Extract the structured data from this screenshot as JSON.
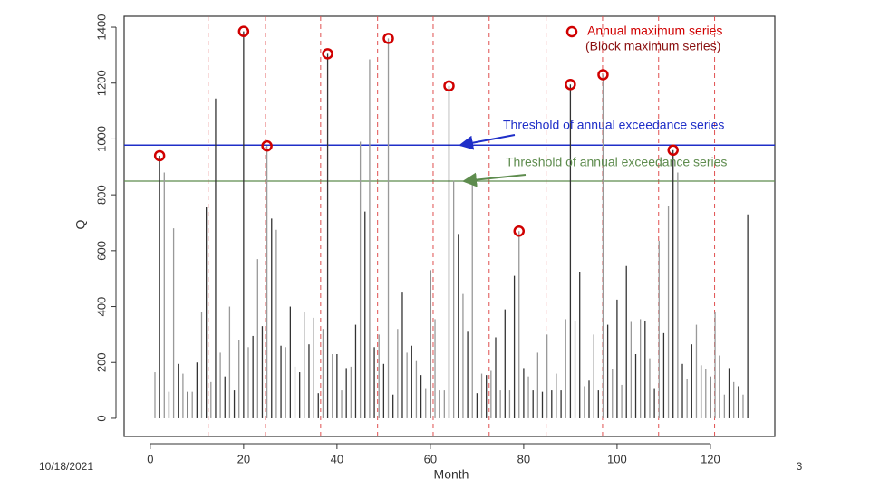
{
  "chart_data": {
    "type": "stem",
    "xlabel": "Month",
    "ylabel": "Q",
    "xlim": [
      -5.6,
      133.8
    ],
    "ylim": [
      -65,
      1439
    ],
    "xticks": [
      0,
      20,
      40,
      60,
      80,
      100,
      120
    ],
    "yticks": [
      0,
      200,
      400,
      600,
      800,
      1000,
      1200,
      1400
    ],
    "color": "#333333",
    "x": [
      1,
      2,
      3,
      4,
      5,
      6,
      7,
      8,
      9,
      10,
      11,
      12,
      13,
      14,
      15,
      16,
      17,
      18,
      19,
      20,
      21,
      22,
      23,
      24,
      25,
      26,
      27,
      28,
      29,
      30,
      31,
      32,
      33,
      34,
      35,
      36,
      37,
      38,
      39,
      40,
      41,
      42,
      43,
      44,
      45,
      46,
      47,
      48,
      49,
      50,
      51,
      52,
      53,
      54,
      55,
      56,
      57,
      58,
      59,
      60,
      61,
      62,
      63,
      64,
      65,
      66,
      67,
      68,
      69,
      70,
      71,
      72,
      73,
      74,
      75,
      76,
      77,
      78,
      79,
      80,
      81,
      82,
      83,
      84,
      85,
      86,
      87,
      88,
      89,
      90,
      91,
      92,
      93,
      94,
      95,
      96,
      97,
      98,
      99,
      100,
      101,
      102,
      103,
      104,
      105,
      106,
      107,
      108,
      109,
      110,
      111,
      112,
      113,
      114,
      115,
      116,
      117,
      118,
      119,
      120,
      121,
      122,
      123,
      124,
      125,
      126,
      127,
      128
    ],
    "values": [
      165,
      940,
      880,
      95,
      680,
      195,
      160,
      95,
      95,
      200,
      380,
      755,
      130,
      1145,
      235,
      150,
      400,
      100,
      280,
      1385,
      255,
      295,
      570,
      330,
      975,
      715,
      675,
      260,
      255,
      400,
      185,
      165,
      380,
      265,
      360,
      90,
      320,
      1305,
      230,
      230,
      100,
      180,
      185,
      335,
      990,
      740,
      1285,
      255,
      300,
      195,
      1360,
      85,
      320,
      450,
      235,
      260,
      205,
      155,
      105,
      530,
      355,
      100,
      100,
      1190,
      850,
      660,
      445,
      310,
      860,
      90,
      160,
      155,
      170,
      290,
      100,
      390,
      100,
      510,
      670,
      180,
      150,
      100,
      235,
      95,
      300,
      100,
      160,
      100,
      355,
      1195,
      350,
      525,
      115,
      135,
      300,
      100,
      1230,
      335,
      175,
      425,
      120,
      545,
      345,
      230,
      355,
      350,
      215,
      105,
      635,
      305,
      760,
      960,
      880,
      195,
      140,
      265,
      335,
      190,
      175,
      150,
      380,
      225,
      85,
      180,
      130,
      115,
      85,
      730
    ],
    "annual_maxima": {
      "name": "Annual maximum series",
      "subtitle": "(Block maximum series)",
      "color": "#d00000",
      "x": [
        2,
        20,
        25,
        38,
        51,
        64,
        79,
        90,
        97,
        112
      ],
      "values": [
        940,
        1385,
        975,
        1305,
        1360,
        1190,
        670,
        1195,
        1230,
        960
      ]
    },
    "thresholds": [
      {
        "label": "Threshold of annual exceedance series",
        "value": 978,
        "color": "#1f2fc8"
      },
      {
        "label": "Threshold of annual exceedance series",
        "value": 849,
        "color": "#5e8c4e"
      }
    ],
    "year_lines": {
      "color": "#e05050",
      "x": [
        12.4,
        24.7,
        36.5,
        48.7,
        60.6,
        72.6,
        84.8,
        96.9,
        108.9,
        120.9
      ]
    }
  },
  "footer": {
    "date": "10/18/2021",
    "page": 3
  }
}
